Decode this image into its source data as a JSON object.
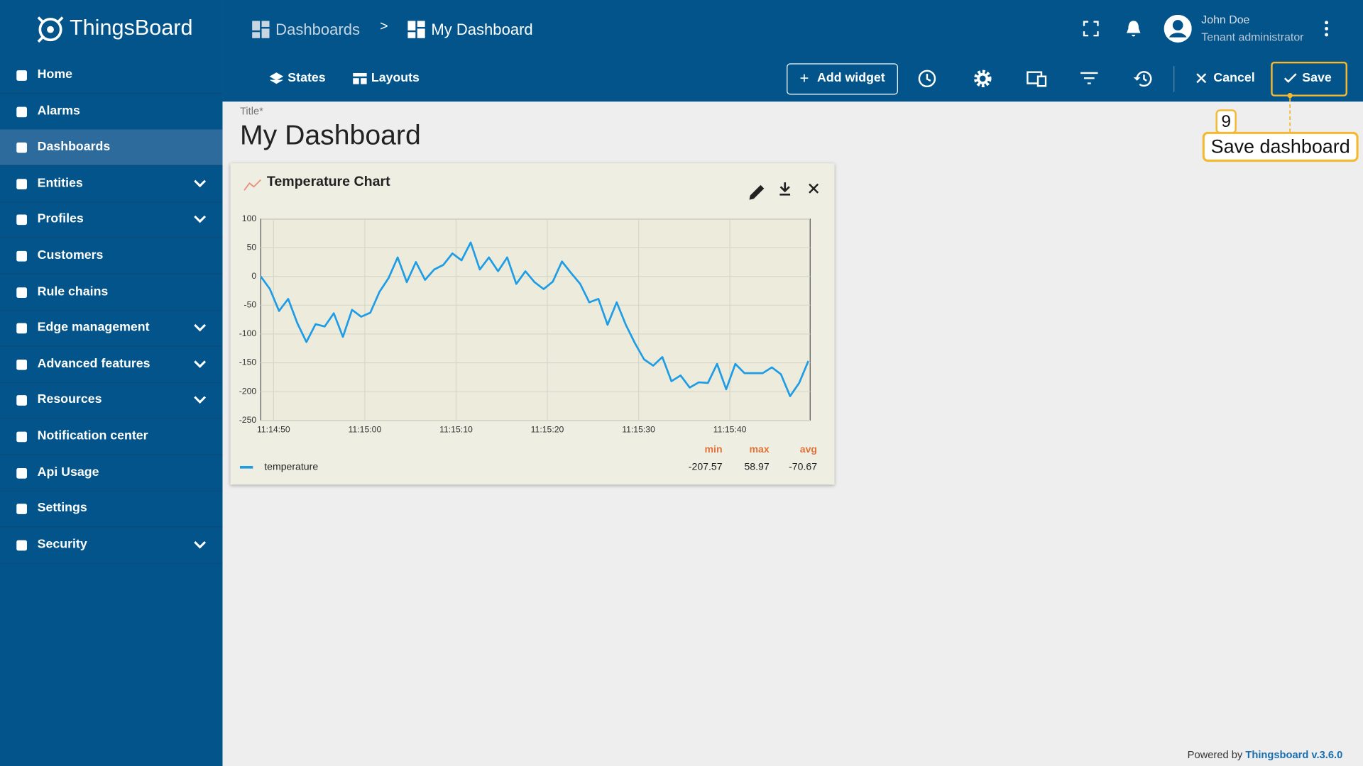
{
  "header": {
    "logo": "ThingsBoard",
    "breadcrumb": [
      "Dashboards",
      "My Dashboard"
    ],
    "separator": ">",
    "user": {
      "name": "John Doe",
      "role": "Tenant administrator"
    }
  },
  "toolbar": {
    "states": "States",
    "layouts": "Layouts",
    "add_widget": "Add widget",
    "cancel": "Cancel",
    "save": "Save"
  },
  "sidebar": {
    "items": [
      "Home",
      "Alarms",
      "Dashboards",
      "Entities",
      "Profiles",
      "Customers",
      "Rule chains",
      "Edge management",
      "Advanced features",
      "Resources",
      "Notification center",
      "Api Usage",
      "Settings",
      "Security"
    ]
  },
  "dashboard": {
    "title_label": "Title*",
    "title": "My Dashboard"
  },
  "annotation": {
    "number": 9,
    "text": "Save dashboard"
  },
  "widget": {
    "title": "Temperature Chart",
    "chart": {
      "type": "line",
      "x": [
        "11:14:48.6",
        "11:14:49.6",
        "11:14:50.6",
        "11:14:51.6",
        "11:14:52.6",
        "11:14:53.6",
        "11:14:54.6",
        "11:14:55.6",
        "11:14:56.6",
        "11:14:57.6",
        "11:14:58.6",
        "11:14:59.6",
        "11:15:00.6",
        "11:15:01.6",
        "11:15:02.6",
        "11:15:03.6",
        "11:15:04.6",
        "11:15:05.6",
        "11:15:06.6",
        "11:15:07.6",
        "11:15:08.6",
        "11:15:09.6",
        "11:15:10.6",
        "11:15:11.6",
        "11:15:12.6",
        "11:15:13.6",
        "11:15:14.6",
        "11:15:15.6",
        "11:15:16.6",
        "11:15:17.6",
        "11:15:18.6",
        "11:15:19.6",
        "11:15:20.6",
        "11:15:21.6",
        "11:15:22.6",
        "11:15:23.6",
        "11:15:24.6",
        "11:15:25.6",
        "11:15:26.6",
        "11:15:27.6",
        "11:15:28.6",
        "11:15:29.6",
        "11:15:30.6",
        "11:15:31.6",
        "11:15:32.6",
        "11:15:33.6",
        "11:15:34.6",
        "11:15:35.6",
        "11:15:36.6",
        "11:15:37.6",
        "11:15:38.6",
        "11:15:39.6",
        "11:15:40.6",
        "11:15:41.6",
        "11:15:42.6",
        "11:15:43.6",
        "11:15:44.6",
        "11:15:45.6",
        "11:15:46.6",
        "11:15:47.6",
        "11:15:48.6"
      ],
      "series": [
        {
          "name": "temperature",
          "color": "#1e9de6",
          "values": [
            0,
            -22,
            -60,
            -39,
            -81,
            -114,
            -83,
            -87,
            -64,
            -105,
            -58,
            -70,
            -63,
            -27,
            -3,
            33,
            -10,
            25,
            -6,
            12,
            20,
            40,
            28,
            59,
            12,
            33,
            9,
            33,
            -13,
            9,
            -10,
            -22,
            -9,
            26,
            6,
            -13,
            -45,
            -39,
            -84,
            -45,
            -84,
            -116,
            -144,
            -155,
            -140,
            -182,
            -172,
            -193,
            -184,
            -185,
            -152,
            -196,
            -152,
            -168,
            -168,
            -168,
            -158,
            -170,
            -208,
            -185,
            -147
          ]
        }
      ],
      "xlim": [
        "11:14:48.6",
        "11:15:48.8"
      ],
      "xticks": [
        "11:14:50",
        "11:15:00",
        "11:15:10",
        "11:15:20",
        "11:15:30",
        "11:15:40"
      ],
      "ylim": [
        -250,
        100
      ],
      "yticks": [
        -250,
        -200,
        -150,
        -100,
        -50,
        0,
        50,
        100
      ],
      "grid": true
    },
    "legend": {
      "headers": [
        "min",
        "max",
        "avg"
      ],
      "values": [
        -207.57,
        58.97,
        -70.67
      ]
    }
  },
  "footer": {
    "prefix": "Powered by",
    "link": "Thingsboard v.3.6.0"
  }
}
